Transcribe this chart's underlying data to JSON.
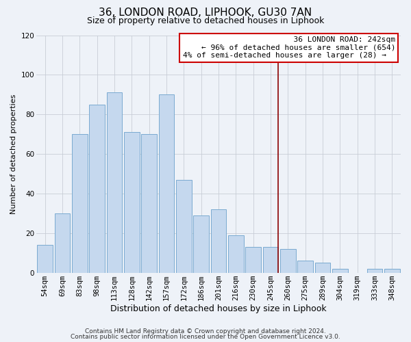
{
  "title": "36, LONDON ROAD, LIPHOOK, GU30 7AN",
  "subtitle": "Size of property relative to detached houses in Liphook",
  "xlabel": "Distribution of detached houses by size in Liphook",
  "ylabel": "Number of detached properties",
  "footer1": "Contains HM Land Registry data © Crown copyright and database right 2024.",
  "footer2": "Contains public sector information licensed under the Open Government Licence v3.0.",
  "categories": [
    "54sqm",
    "69sqm",
    "83sqm",
    "98sqm",
    "113sqm",
    "128sqm",
    "142sqm",
    "157sqm",
    "172sqm",
    "186sqm",
    "201sqm",
    "216sqm",
    "230sqm",
    "245sqm",
    "260sqm",
    "275sqm",
    "289sqm",
    "304sqm",
    "319sqm",
    "333sqm",
    "348sqm"
  ],
  "values": [
    14,
    30,
    70,
    85,
    91,
    71,
    70,
    90,
    47,
    29,
    32,
    19,
    13,
    13,
    12,
    6,
    5,
    2,
    0,
    2,
    2
  ],
  "bar_color": "#c5d8ee",
  "bar_edge_color": "#7aaad0",
  "background_color": "#eef2f8",
  "grid_color": "#c8cdd6",
  "vline_x_index": 13,
  "vline_color": "#8b0000",
  "annotation_title": "36 LONDON ROAD: 242sqm",
  "annotation_line1": "← 96% of detached houses are smaller (654)",
  "annotation_line2": "4% of semi-detached houses are larger (28) →",
  "annotation_box_color": "#ffffff",
  "annotation_border_color": "#cc0000",
  "ylim": [
    0,
    120
  ],
  "yticks": [
    0,
    20,
    40,
    60,
    80,
    100,
    120
  ],
  "title_fontsize": 11,
  "subtitle_fontsize": 9,
  "xlabel_fontsize": 9,
  "ylabel_fontsize": 8,
  "tick_fontsize": 7.5,
  "annotation_fontsize": 8,
  "footer_fontsize": 6.5
}
